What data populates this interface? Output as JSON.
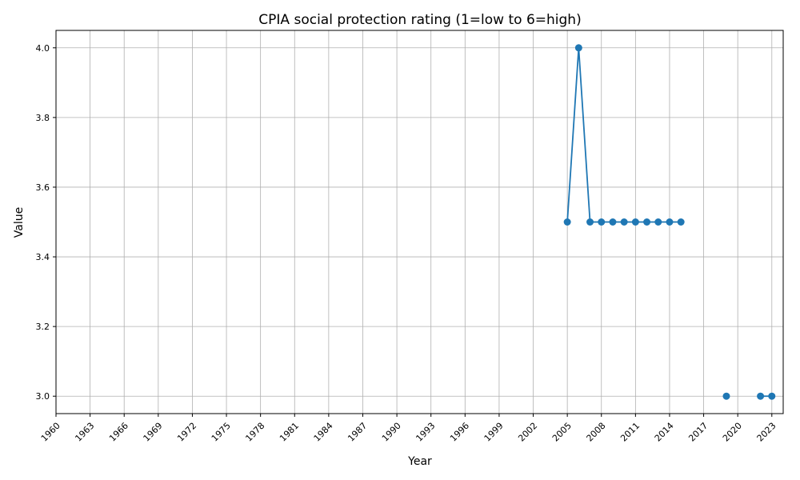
{
  "chart_data": {
    "type": "line",
    "title": "CPIA social protection rating (1=low to 6=high)",
    "xlabel": "Year",
    "ylabel": "Value",
    "xlim": [
      1960,
      2024
    ],
    "ylim": [
      2.95,
      4.05
    ],
    "xticks": [
      1960,
      1963,
      1966,
      1969,
      1972,
      1975,
      1978,
      1981,
      1984,
      1987,
      1990,
      1993,
      1996,
      1999,
      2002,
      2005,
      2008,
      2011,
      2014,
      2017,
      2020,
      2023
    ],
    "yticks": [
      "3.0",
      "3.2",
      "3.4",
      "3.6",
      "3.8",
      "4.0"
    ],
    "grid": true,
    "color": "#1f77b4",
    "series": [
      {
        "x": [
          2005,
          2006,
          2007,
          2008,
          2009,
          2010,
          2011,
          2012,
          2013,
          2014,
          2015,
          2016,
          2017,
          2018,
          2019,
          2020,
          2021,
          2022,
          2023
        ],
        "y": [
          3.5,
          4.0,
          3.5,
          3.5,
          3.5,
          3.5,
          3.5,
          3.5,
          3.5,
          3.5,
          3.5,
          null,
          null,
          null,
          3.0,
          null,
          null,
          3.0,
          3.0
        ]
      }
    ]
  }
}
